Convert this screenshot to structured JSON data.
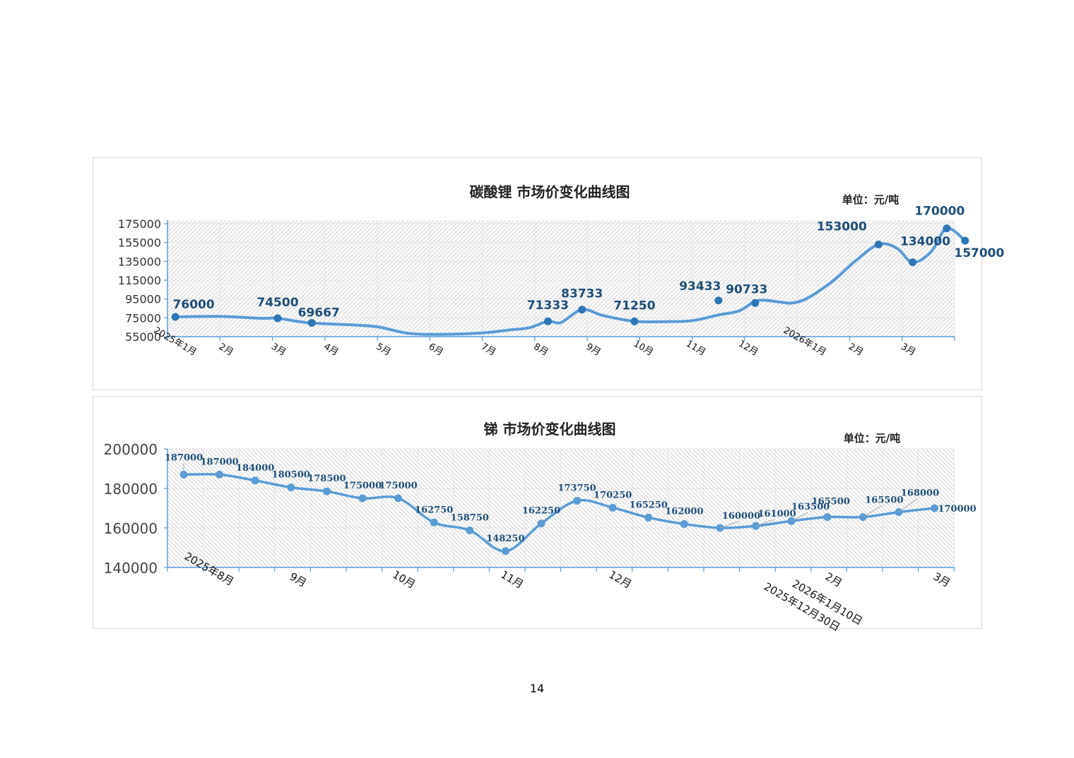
{
  "page": {
    "number": "14"
  },
  "chart_data": [
    {
      "type": "line",
      "title": "碳酸锂 市场价变化曲线图",
      "unit_label": "单位：元/吨",
      "ylim": [
        55000,
        175000
      ],
      "yticks": [
        "175000",
        "155000",
        "135000",
        "115000",
        "95000",
        "75000",
        "55000"
      ],
      "x_labels": [
        "2025年1月",
        "2月",
        "3月",
        "4月",
        "5月",
        "6月",
        "7月",
        "8月",
        "9月",
        "10月",
        "11月",
        "12月",
        "2026年1月",
        "2月",
        "3月"
      ],
      "grid": true,
      "legend": "none",
      "color": "#5b9bd5",
      "marker_color": "#2e75b6",
      "curve": [
        [
          0.15,
          76000
        ],
        [
          1,
          76500
        ],
        [
          1.8,
          74500
        ],
        [
          2.1,
          74500
        ],
        [
          2.7,
          69667
        ],
        [
          3.5,
          67500
        ],
        [
          4,
          65500
        ],
        [
          4.6,
          58500
        ],
        [
          5.2,
          57500
        ],
        [
          6,
          59000
        ],
        [
          6.5,
          62000
        ],
        [
          6.9,
          64500
        ],
        [
          7.25,
          71333
        ],
        [
          7.5,
          70000
        ],
        [
          7.9,
          83733
        ],
        [
          8.3,
          77500
        ],
        [
          8.9,
          71250
        ],
        [
          9.5,
          71000
        ],
        [
          10,
          72000
        ],
        [
          10.5,
          78000
        ],
        [
          10.9,
          82500
        ],
        [
          11.25,
          93433
        ],
        [
          11.7,
          91500
        ],
        [
          11.9,
          90733
        ],
        [
          12.2,
          96000
        ],
        [
          12.7,
          115000
        ],
        [
          13.1,
          135000
        ],
        [
          13.55,
          153000
        ],
        [
          13.9,
          149000
        ],
        [
          14.2,
          134000
        ],
        [
          14.55,
          145000
        ],
        [
          14.85,
          170000
        ],
        [
          15.2,
          157000
        ]
      ],
      "points": [
        {
          "x": 0.15,
          "y": 76000,
          "label": "76000"
        },
        {
          "x": 2.1,
          "y": 74500,
          "label": "74500"
        },
        {
          "x": 2.75,
          "y": 69667,
          "label": "69667"
        },
        {
          "x": 7.25,
          "y": 71333,
          "label": "71333"
        },
        {
          "x": 7.9,
          "y": 83733,
          "label": "83733"
        },
        {
          "x": 8.9,
          "y": 71250,
          "label": "71250"
        },
        {
          "x": 10.5,
          "y": 93433,
          "label": "93433"
        },
        {
          "x": 11.2,
          "y": 90733,
          "label": "90733"
        },
        {
          "x": 13.55,
          "y": 153000,
          "label": "153000"
        },
        {
          "x": 14.2,
          "y": 134000,
          "label": "134000"
        },
        {
          "x": 14.85,
          "y": 170000,
          "label": "170000"
        },
        {
          "x": 15.2,
          "y": 157000,
          "label": "157000"
        }
      ]
    },
    {
      "type": "line",
      "title": "锑  市场价变化曲线图",
      "unit_label": "单位：元/吨",
      "ylim": [
        140000,
        200000
      ],
      "yticks": [
        "200000",
        "180000",
        "160000",
        "140000"
      ],
      "x_labels": [
        "2025年8月",
        "9月",
        "10月",
        "11月",
        "12月",
        "2025年12月30日",
        "2026年1月10日",
        "2月",
        "3月"
      ],
      "grid": true,
      "legend": "none",
      "color": "#5b9bd5",
      "marker_color": "#5b9bd5",
      "points": [
        {
          "label": "187000",
          "y": 187000
        },
        {
          "label": "187000",
          "y": 187000
        },
        {
          "label": "184000",
          "y": 184000
        },
        {
          "label": "180500",
          "y": 180500
        },
        {
          "label": "178500",
          "y": 178500
        },
        {
          "label": "175000",
          "y": 175000
        },
        {
          "label": "175000",
          "y": 175000
        },
        {
          "label": "162750",
          "y": 162750
        },
        {
          "label": "158750",
          "y": 158750
        },
        {
          "label": "148250",
          "y": 148250
        },
        {
          "label": "162250",
          "y": 162250
        },
        {
          "label": "173750",
          "y": 173750
        },
        {
          "label": "170250",
          "y": 170250
        },
        {
          "label": "165250",
          "y": 165250
        },
        {
          "label": "162000",
          "y": 162000
        },
        {
          "label": "160000",
          "y": 160000
        },
        {
          "label": "161000",
          "y": 161000
        },
        {
          "label": "163500",
          "y": 163500
        },
        {
          "label": "165500",
          "y": 165500
        },
        {
          "label": "165500",
          "y": 165500
        },
        {
          "label": "168000",
          "y": 168000
        },
        {
          "label": "170000",
          "y": 170000
        }
      ]
    }
  ]
}
